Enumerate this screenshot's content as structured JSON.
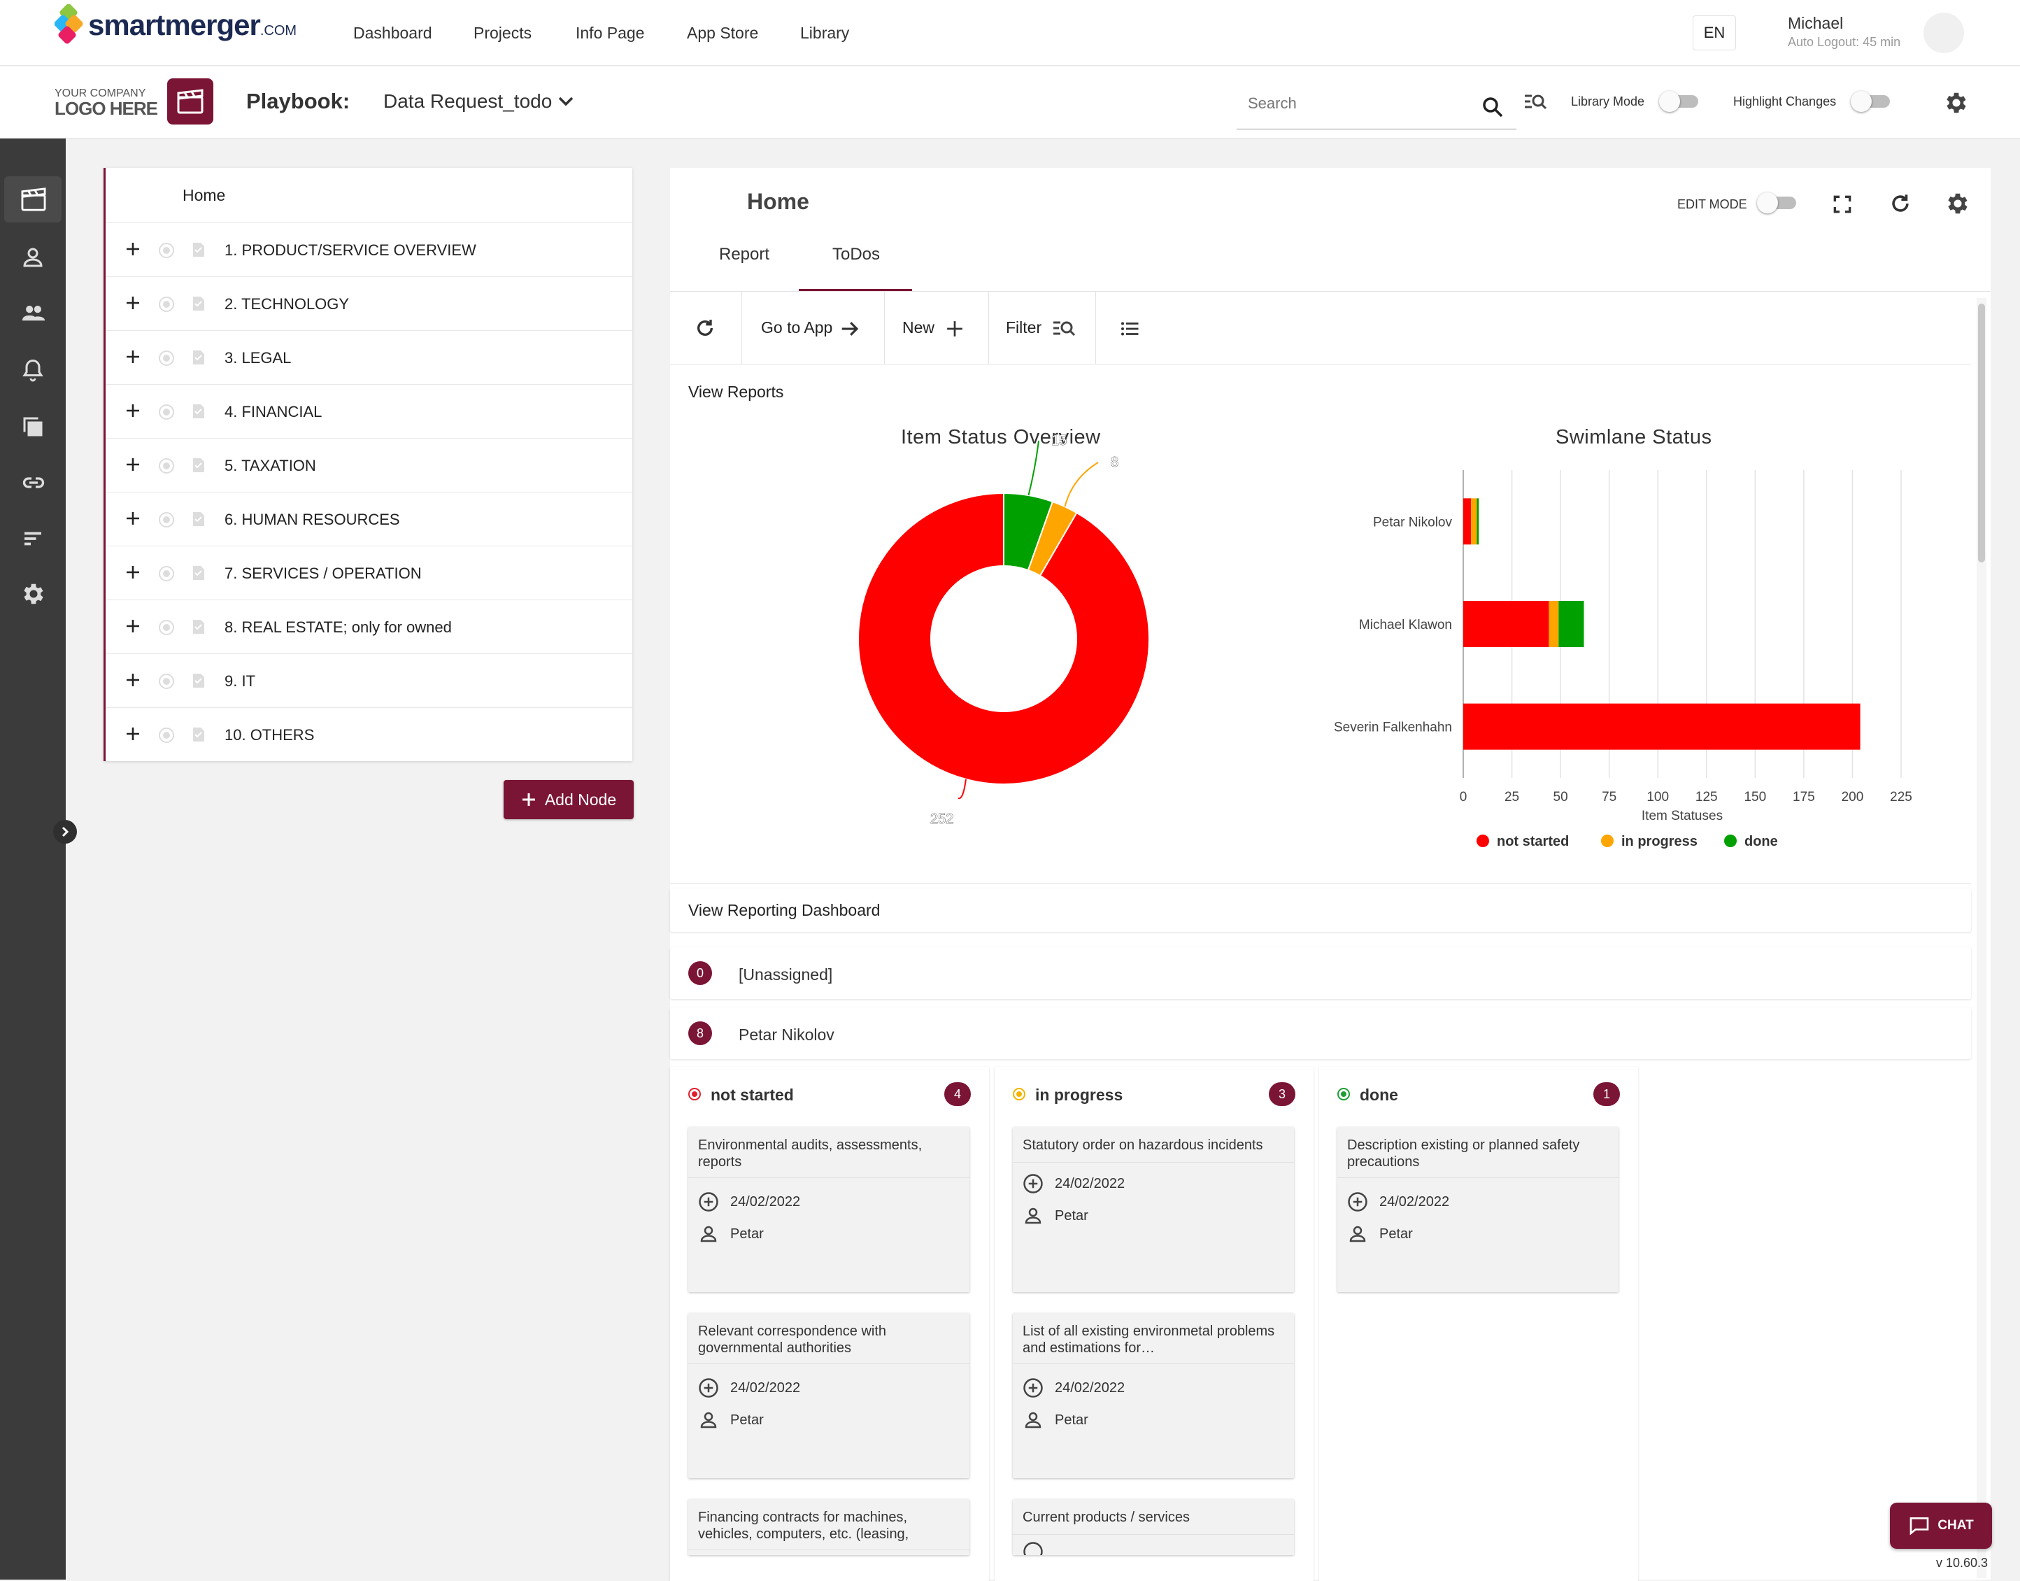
{
  "brand": {
    "name": "smartmerger",
    "suffix": ".COM",
    "primary": "#7b1535"
  },
  "nav": {
    "items": [
      "Dashboard",
      "Projects",
      "Info Page",
      "App Store",
      "Library"
    ]
  },
  "user": {
    "lang": "EN",
    "name": "Michael",
    "auto_logout": "Auto Logout: 45 min"
  },
  "subbar": {
    "company_line1": "YOUR COMPANY",
    "company_line2": "LOGO HERE",
    "playbook_label": "Playbook:",
    "playbook_name": "Data Request_todo",
    "search_placeholder": "Search",
    "library_mode": "Library Mode",
    "library_mode_on": false,
    "highlight_changes": "Highlight Changes",
    "highlight_changes_on": false
  },
  "sidebar": {
    "icons": [
      "clapperboard-icon",
      "person-icon",
      "group-icon",
      "bell-icon",
      "copy-icon",
      "link-icon",
      "sort-icon",
      "gear-icon"
    ],
    "active": 0
  },
  "tree": {
    "home": "Home",
    "items": [
      "1. PRODUCT/SERVICE OVERVIEW",
      "2. TECHNOLOGY",
      "3. LEGAL",
      "4. FINANCIAL",
      "5. TAXATION",
      "6. HUMAN RESOURCES",
      "7. SERVICES / OPERATION",
      "8. REAL ESTATE; only for owned",
      "9. IT",
      "10. OTHERS"
    ],
    "add_node": "Add Node"
  },
  "main": {
    "title": "Home",
    "edit_mode": "EDIT MODE",
    "edit_mode_on": false,
    "tabs": [
      {
        "label": "Report",
        "active": false
      },
      {
        "label": "ToDos",
        "active": true
      }
    ],
    "toolbar": {
      "go_to_app": "Go to App",
      "new": "New",
      "filter": "Filter"
    },
    "view_reports": "View Reports",
    "view_reporting_dashboard": "View Reporting Dashboard"
  },
  "chart_data": [
    {
      "type": "pie",
      "title": "Item Status Overview",
      "donut": true,
      "slices": [
        {
          "label": "not started",
          "value": 252,
          "color": "#ff0000"
        },
        {
          "label": "in progress",
          "value": 8,
          "color": "#ffa500"
        },
        {
          "label": "done",
          "value": 15,
          "color": "#00a000"
        }
      ],
      "data_labels": [
        "15",
        "8",
        "252"
      ]
    },
    {
      "type": "bar",
      "orientation": "horizontal",
      "stacked": true,
      "title": "Swimlane Status",
      "categories": [
        "Petar Nikolov",
        "Michael Klawon",
        "Severin Falkenhahn"
      ],
      "series": [
        {
          "name": "not started",
          "color": "#ff0000",
          "values": [
            4,
            44,
            204
          ]
        },
        {
          "name": "in progress",
          "color": "#ffa500",
          "values": [
            3,
            5,
            0
          ]
        },
        {
          "name": "done",
          "color": "#00a000",
          "values": [
            1,
            13,
            0
          ]
        }
      ],
      "xlabel": "Item Statuses",
      "xlim": [
        0,
        225
      ],
      "xticks": [
        "0",
        "25",
        "50",
        "75",
        "100",
        "125",
        "150",
        "175",
        "200",
        "225"
      ],
      "grid": true,
      "legend": "bottom"
    }
  ],
  "swimlanes": [
    {
      "count": "0",
      "name": "[Unassigned]"
    },
    {
      "count": "8",
      "name": "Petar Nikolov"
    }
  ],
  "lanes": [
    {
      "name": "not started",
      "count": "4",
      "color": "#e0202e",
      "cards": [
        {
          "title": "Environmental audits, assessments, reports",
          "date": "24/02/2022",
          "assignee": "Petar"
        },
        {
          "title": "Relevant correspondence with governmental authorities",
          "date": "24/02/2022",
          "assignee": "Petar"
        },
        {
          "title": "Financing contracts for machines, vehicles, computers, etc. (leasing, renta…",
          "date": "",
          "assignee": ""
        }
      ]
    },
    {
      "name": "in progress",
      "count": "3",
      "color": "#f4b400",
      "cards": [
        {
          "title": "Statutory order on hazardous incidents",
          "date": "24/02/2022",
          "assignee": "Petar"
        },
        {
          "title": "List of all existing environmetal problems and estimations for…",
          "date": "24/02/2022",
          "assignee": "Petar"
        },
        {
          "title": "Current products / services",
          "date": "",
          "assignee": ""
        }
      ]
    },
    {
      "name": "done",
      "count": "1",
      "color": "#1e9e35",
      "cards": [
        {
          "title": "Description existing or planned safety precautions",
          "date": "24/02/2022",
          "assignee": "Petar"
        }
      ]
    }
  ],
  "chat": {
    "label": "CHAT"
  },
  "version": "v 10.60.3"
}
